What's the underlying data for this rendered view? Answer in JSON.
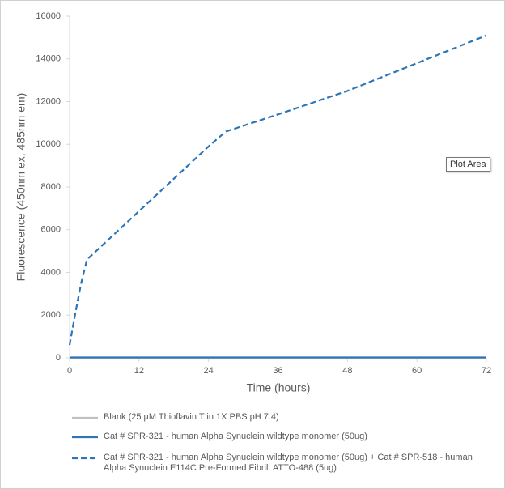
{
  "chart_data": {
    "type": "line",
    "x_label": "Time (hours)",
    "y_label": "Fluorescence (450nm ex, 485nm em)",
    "annotation": "Plot Area",
    "x": [
      0,
      1,
      2,
      3,
      24,
      27,
      36,
      48,
      60,
      72
    ],
    "series": [
      {
        "name": "Blank (25 µM Thioflavin T in 1X PBS pH 7.4)",
        "color": "#bfbfbf",
        "dash": false,
        "values": [
          0,
          0,
          0,
          0,
          0,
          0,
          0,
          0,
          0,
          0
        ]
      },
      {
        "name": "Cat # SPR-321 - human Alpha Synuclein wildtype monomer (50ug)",
        "color": "#2e75b6",
        "dash": false,
        "values": [
          20,
          20,
          20,
          20,
          20,
          20,
          20,
          20,
          20,
          20
        ]
      },
      {
        "name": "Cat # SPR-321 - human Alpha Synuclein wildtype monomer (50ug) + Cat # SPR-518 - human Alpha Synuclein E114C Pre-Formed Fibril: ATTO-488 (5ug)",
        "color": "#2e75b6",
        "dash": true,
        "values": [
          600,
          2100,
          3500,
          4600,
          9900,
          10600,
          11400,
          12500,
          13800,
          15100
        ]
      }
    ],
    "xlim": [
      0,
      72
    ],
    "xticks": [
      0,
      12,
      24,
      36,
      48,
      60,
      72
    ],
    "ylim": [
      0,
      16000
    ],
    "yticks": [
      0,
      2000,
      4000,
      6000,
      8000,
      10000,
      12000,
      14000,
      16000
    ],
    "grid": false
  }
}
